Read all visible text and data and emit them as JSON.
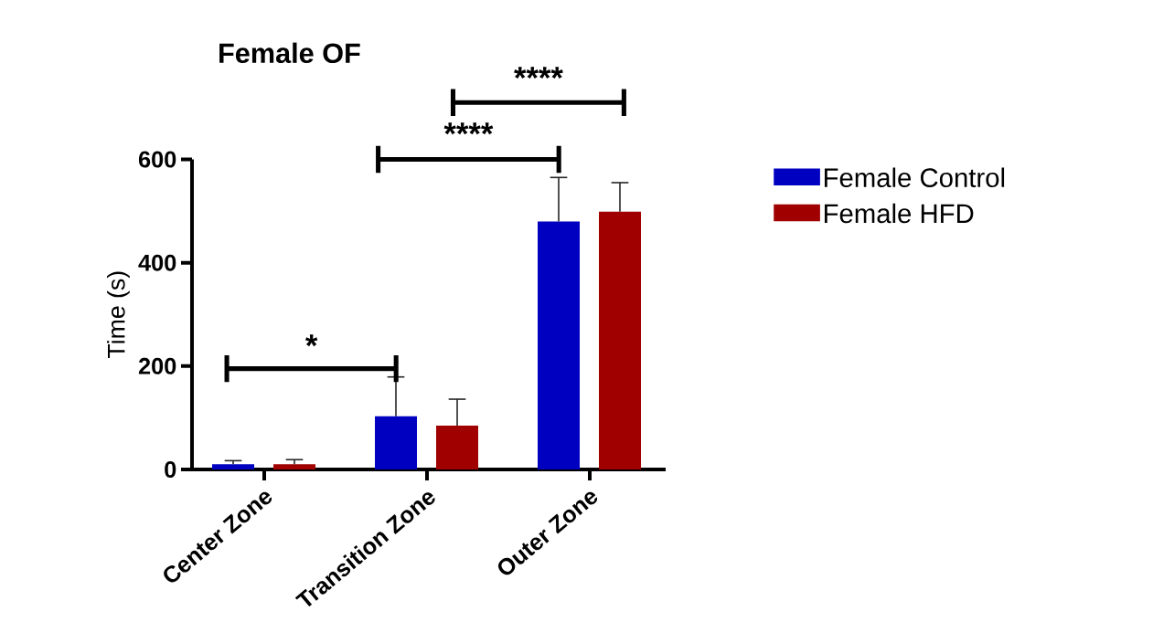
{
  "chart_data": {
    "type": "bar",
    "title": "Female OF",
    "ylabel": "Time (s)",
    "categories": [
      "Center Zone",
      "Transition Zone",
      "Outer Zone"
    ],
    "series": [
      {
        "name": "Female Control",
        "color": "#0000c0",
        "values": [
          10,
          103,
          480
        ],
        "errors": [
          [
            10,
            17
          ],
          [
            103,
            179
          ],
          [
            480,
            565
          ]
        ]
      },
      {
        "name": "Female HFD",
        "color": "#a00000",
        "values": [
          10,
          85,
          499
        ],
        "errors": [
          [
            10,
            19
          ],
          [
            85,
            136
          ],
          [
            499,
            555
          ]
        ]
      }
    ],
    "ylim": [
      0,
      600
    ],
    "yticks": [
      0,
      200,
      400,
      600
    ],
    "grid": false,
    "legend": "right",
    "annotations": [
      "*",
      "****",
      "****"
    ]
  }
}
